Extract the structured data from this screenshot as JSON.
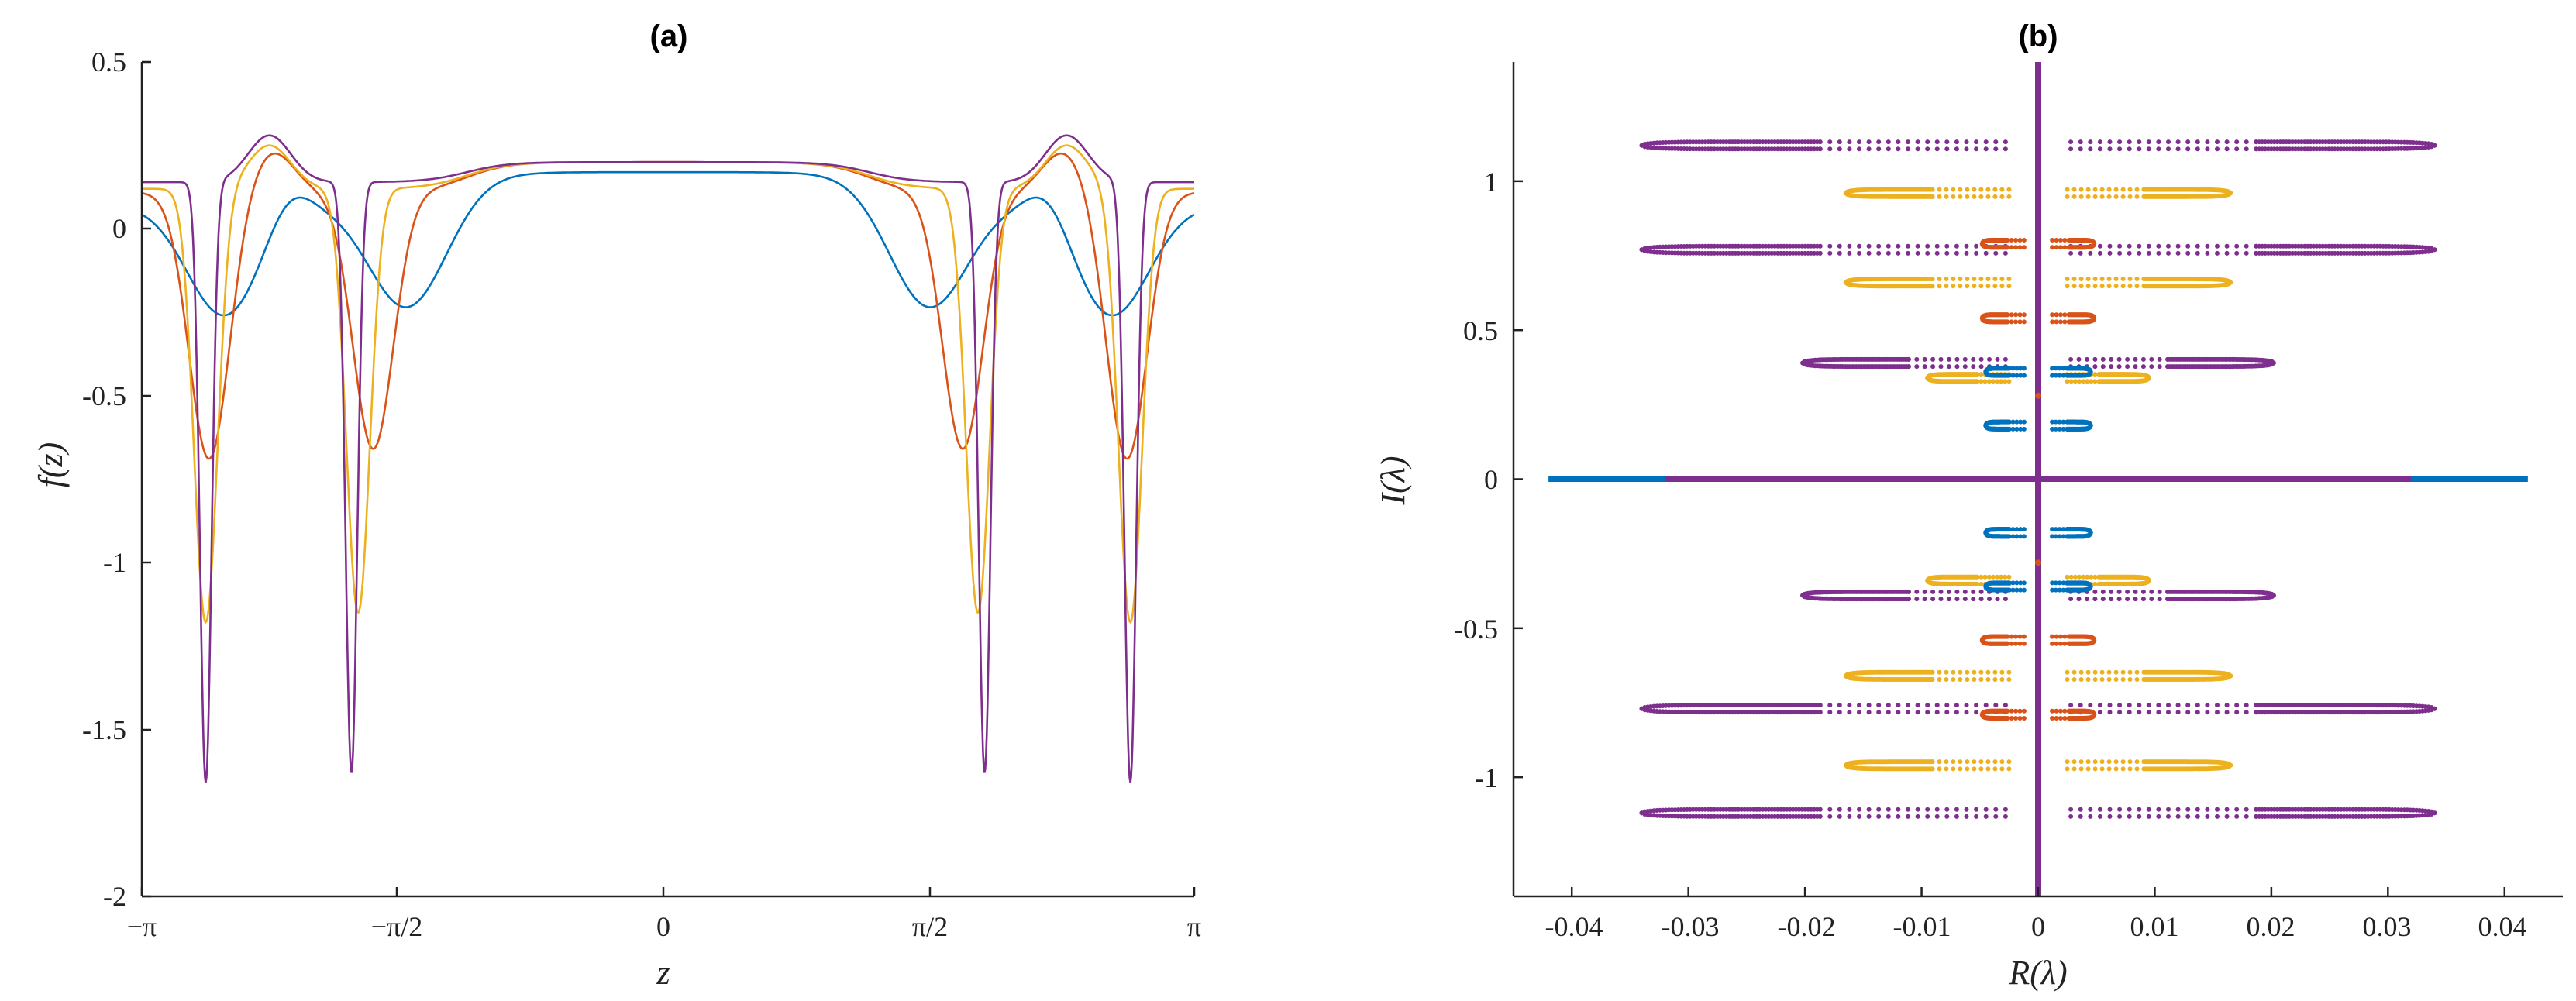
{
  "chart_data": [
    {
      "id": "a",
      "type": "line",
      "title": "(a)",
      "xlabel": "z",
      "ylabel": "f(z)",
      "xlim": [
        -3.14159,
        3.14159
      ],
      "ylim": [
        -2,
        0.5
      ],
      "x_ticks": [
        {
          "value": -3.14159,
          "label": "−π"
        },
        {
          "value": -1.5708,
          "label": "−π/2"
        },
        {
          "value": 0,
          "label": "0"
        },
        {
          "value": 1.5708,
          "label": "π/2"
        },
        {
          "value": 3.14159,
          "label": "π"
        }
      ],
      "y_ticks": [
        {
          "value": 0.5,
          "label": "0.5"
        },
        {
          "value": 0,
          "label": "0"
        },
        {
          "value": -0.5,
          "label": "-0.5"
        },
        {
          "value": -1,
          "label": "-1"
        },
        {
          "value": -1.5,
          "label": "-1.5"
        },
        {
          "value": -2,
          "label": "-2"
        }
      ],
      "series": [
        {
          "name": "s1",
          "color": "#0072BD",
          "plateau": 0.17,
          "edge": 0.07,
          "wells": [
            {
              "center": 2.65,
              "depth": 0.33,
              "width": 0.22,
              "shoulder": 0.08
            },
            {
              "center": 1.56,
              "depth": 0.31,
              "width": 0.22,
              "shoulder": 0.0
            }
          ]
        },
        {
          "name": "s2",
          "color": "#D95319",
          "plateau": 0.2,
          "edge": 0.11,
          "wells": [
            {
              "center": 2.74,
              "depth": 0.8,
              "width": 0.12,
              "shoulder": 0.12
            },
            {
              "center": 1.76,
              "depth": 0.77,
              "width": 0.12,
              "shoulder": 0.0
            }
          ]
        },
        {
          "name": "s3",
          "color": "#EDB120",
          "plateau": 0.2,
          "edge": 0.12,
          "wells": [
            {
              "center": 2.76,
              "depth": 1.3,
              "width": 0.07,
              "shoulder": 0.13
            },
            {
              "center": 1.85,
              "depth": 1.27,
              "width": 0.07,
              "shoulder": 0.0
            }
          ]
        },
        {
          "name": "s4",
          "color": "#7E2F8E",
          "plateau": 0.2,
          "edge": 0.14,
          "wells": [
            {
              "center": 2.76,
              "depth": 1.8,
              "width": 0.035,
              "shoulder": 0.14
            },
            {
              "center": 1.89,
              "depth": 1.77,
              "width": 0.035,
              "shoulder": 0.0
            }
          ]
        }
      ]
    },
    {
      "id": "b",
      "type": "scatter",
      "title": "(b)",
      "xlabel": "R(λ)",
      "ylabel": "I(λ)",
      "xlim": [
        -0.045,
        0.045
      ],
      "ylim": [
        -1.4,
        1.4
      ],
      "x_ticks": [
        {
          "value": -0.04,
          "label": "-0.04"
        },
        {
          "value": -0.03,
          "label": "-0.03"
        },
        {
          "value": -0.02,
          "label": "-0.02"
        },
        {
          "value": -0.01,
          "label": "-0.01"
        },
        {
          "value": 0,
          "label": "0"
        },
        {
          "value": 0.01,
          "label": "0.01"
        },
        {
          "value": 0.02,
          "label": "0.02"
        },
        {
          "value": 0.03,
          "label": "0.03"
        },
        {
          "value": 0.04,
          "label": "0.04"
        }
      ],
      "y_ticks": [
        {
          "value": 1,
          "label": "1"
        },
        {
          "value": 0.5,
          "label": "0.5"
        },
        {
          "value": 0,
          "label": "0"
        },
        {
          "value": -0.5,
          "label": "-0.5"
        },
        {
          "value": -1,
          "label": "-1"
        }
      ],
      "real_axis_segments": [
        {
          "name": "blue-real-line",
          "color": "#0072BD",
          "from": -0.042,
          "to": 0.042
        },
        {
          "name": "purple-real-line",
          "color": "#7E2F8E",
          "from": -0.032,
          "to": 0.032
        }
      ],
      "imag_axis_line": {
        "color": "#7E2F8E",
        "from": -1.4,
        "to": 1.4
      },
      "loops": [
        {
          "series": "purple",
          "color": "#7E2F8E",
          "y": 1.12,
          "xmax": 0.034,
          "inner": 0.0028,
          "n": 20
        },
        {
          "series": "purple",
          "color": "#7E2F8E",
          "y": 0.77,
          "xmax": 0.034,
          "inner": 0.0028,
          "n": 20
        },
        {
          "series": "purple",
          "color": "#7E2F8E",
          "y": 0.39,
          "xmax": 0.0202,
          "inner": 0.0028,
          "n": 13
        },
        {
          "series": "yellow",
          "color": "#EDB120",
          "y": 0.96,
          "xmax": 0.0165,
          "inner": 0.0025,
          "n": 12
        },
        {
          "series": "yellow",
          "color": "#EDB120",
          "y": 0.66,
          "xmax": 0.0165,
          "inner": 0.0025,
          "n": 12
        },
        {
          "series": "yellow",
          "color": "#EDB120",
          "y": 0.34,
          "xmax": 0.0095,
          "inner": 0.0025,
          "n": 9
        },
        {
          "series": "red",
          "color": "#D95319",
          "y": 0.79,
          "xmax": 0.0048,
          "inner": 0.0012,
          "n": 5
        },
        {
          "series": "red",
          "color": "#D95319",
          "y": 0.54,
          "xmax": 0.0048,
          "inner": 0.0012,
          "n": 5
        },
        {
          "series": "blue",
          "color": "#0072BD",
          "y": 0.36,
          "xmax": 0.0045,
          "inner": 0.0012,
          "n": 5
        },
        {
          "series": "blue",
          "color": "#0072BD",
          "y": 0.18,
          "xmax": 0.0045,
          "inner": 0.0012,
          "n": 5
        }
      ],
      "axis_points": [
        {
          "series": "red",
          "color": "#D95319",
          "y": 0.28
        }
      ]
    }
  ]
}
